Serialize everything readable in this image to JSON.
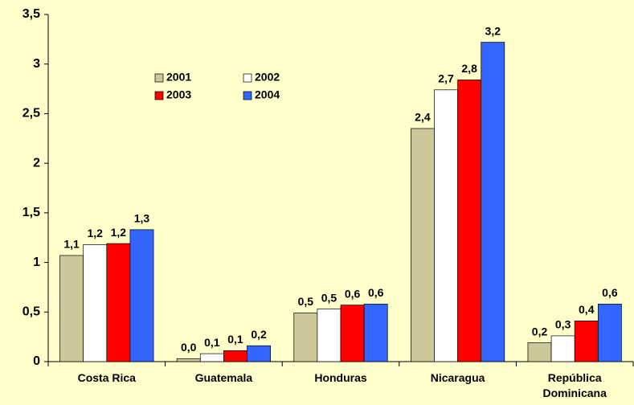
{
  "chart_data": {
    "type": "bar",
    "categories": [
      "Costa Rica",
      "Guatemala",
      "Honduras",
      "Nicaragua",
      "República Dominicana"
    ],
    "series": [
      {
        "name": "2001",
        "color": "#CCC899",
        "values": [
          1.07,
          0.03,
          0.49,
          2.35,
          0.19
        ],
        "value_labels": [
          "1,1",
          "0,0",
          "0,5",
          "2,4",
          "0,2"
        ]
      },
      {
        "name": "2002",
        "color": "#FFFFFF",
        "values": [
          1.18,
          0.08,
          0.53,
          2.74,
          0.26
        ],
        "value_labels": [
          "1,2",
          "0,1",
          "0,5",
          "2,7",
          "0,3"
        ]
      },
      {
        "name": "2003",
        "color": "#FF0000",
        "values": [
          1.19,
          0.11,
          0.57,
          2.84,
          0.41
        ],
        "value_labels": [
          "1,2",
          "0,1",
          "0,6",
          "2,8",
          "0,4"
        ]
      },
      {
        "name": "2004",
        "color": "#3366FF",
        "values": [
          1.33,
          0.16,
          0.58,
          3.22,
          0.58
        ],
        "value_labels": [
          "1,3",
          "0,2",
          "0,6",
          "3,2",
          "0,6"
        ]
      }
    ],
    "ylim": [
      0,
      3.5
    ],
    "yticks": [
      0,
      {
        "value": 0.5,
        "label": "0,5"
      },
      1,
      {
        "value": 1.5,
        "label": "1,5"
      },
      2,
      {
        "value": 2.5,
        "label": "2,5"
      },
      3,
      {
        "value": 3.5,
        "label": "3,5"
      }
    ]
  }
}
